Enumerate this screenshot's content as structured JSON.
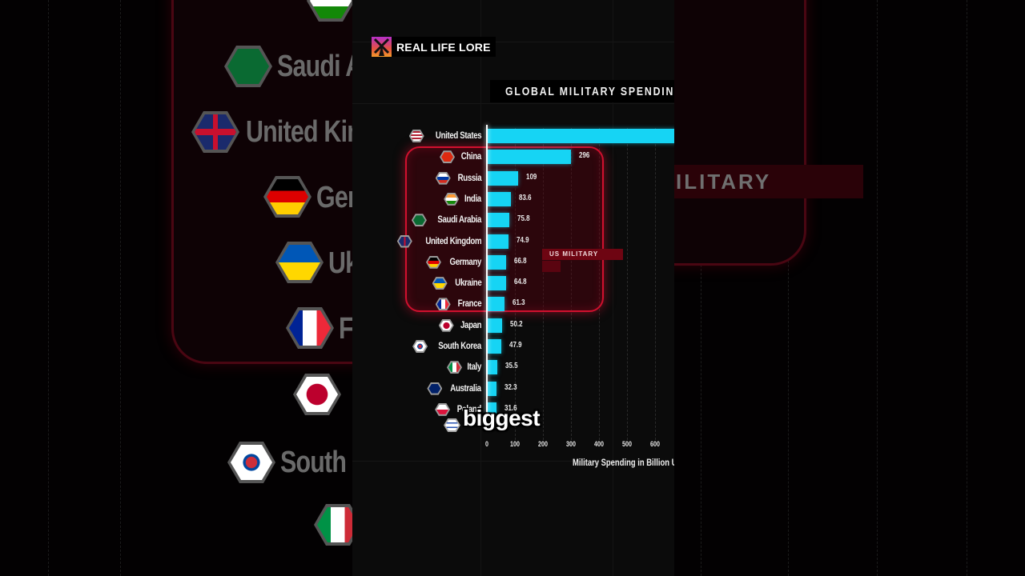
{
  "brand": {
    "name": "REAL LIFE LORE",
    "logo_icon": "windmill-icon"
  },
  "chart_title": "GLOBAL MILITARY SPENDIN",
  "highlight_label": "US MILITARY",
  "caption": "biggest",
  "background": {
    "left_labels": [
      "Saudi A",
      "United Kin",
      "Ger",
      "Uk",
      "F",
      "South"
    ],
    "right_label": "ILITARY"
  },
  "chart_data": {
    "type": "bar",
    "orientation": "horizontal",
    "title": "GLOBAL MILITARY SPENDIN",
    "xlabel": "Military Spending in Billion U",
    "ylabel": "",
    "xlim": [
      0,
      670
    ],
    "x_ticks": [
      "0",
      "100",
      "200",
      "300",
      "400",
      "500",
      "600"
    ],
    "grid": true,
    "categories": [
      "United States",
      "China",
      "Russia",
      "India",
      "Saudi Arabia",
      "United Kingdom",
      "Germany",
      "Ukraine",
      "France",
      "Japan",
      "South Korea",
      "Italy",
      "Australia",
      "Poland",
      "Israel"
    ],
    "values": [
      null,
      296,
      109,
      83.6,
      75.8,
      74.9,
      66.8,
      64.8,
      61.3,
      50.2,
      47.9,
      35.5,
      32.3,
      31.6,
      null
    ],
    "value_labels": [
      "",
      "296",
      "109",
      "83.6",
      "75.8",
      "74.9",
      "66.8",
      "64.8",
      "61.3",
      "50.2",
      "47.9",
      "35.5",
      "32.3",
      "31.6",
      ""
    ],
    "bar_color": "#16d4f4",
    "annotations": [
      "US MILITARY"
    ],
    "highlighted_group": [
      "China",
      "Russia",
      "India",
      "Saudi Arabia",
      "United Kingdom",
      "Germany",
      "Ukraine",
      "France"
    ],
    "notes": "United States bar extends beyond visible crop; Israel row obscured by caption"
  },
  "colors": {
    "bar": "#16d4f4",
    "highlight_border": "#d0102e",
    "background": "#0b0b0b"
  }
}
